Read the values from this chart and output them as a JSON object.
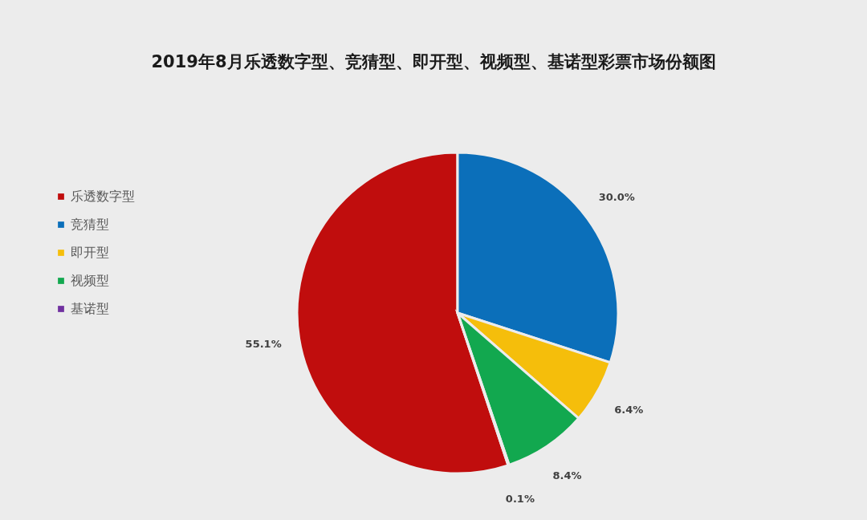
{
  "chart_data": {
    "type": "pie",
    "title": "2019年8月乐透数字型、竞猜型、即开型、视频型、基诺型彩票市场份额图",
    "categories": [
      "乐透数字型",
      "竞猜型",
      "即开型",
      "视频型",
      "基诺型"
    ],
    "values": [
      55.1,
      30.0,
      6.4,
      8.4,
      0.1
    ],
    "colors": [
      "#c00d0d",
      "#0b6fba",
      "#f5be0b",
      "#12a84f",
      "#7030a0"
    ],
    "value_labels": [
      "55.1%",
      "30.0%",
      "6.4%",
      "8.4%",
      "0.1%"
    ],
    "legend": "left"
  }
}
